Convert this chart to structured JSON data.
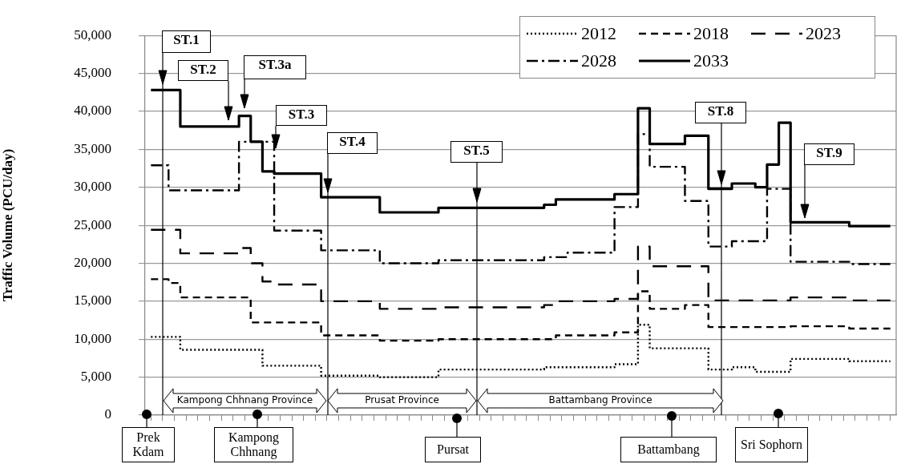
{
  "chart_data": {
    "type": "step",
    "ylabel": "Traffic Volume (PCU/day)",
    "categories": [
      null,
      null,
      null,
      null,
      null,
      null,
      null,
      null,
      null,
      null,
      null,
      null,
      null,
      null,
      null,
      null,
      null,
      null,
      null,
      null,
      null,
      null,
      null,
      null,
      null,
      null,
      null,
      null,
      null,
      null,
      null,
      null,
      null,
      null,
      null,
      null,
      null,
      null,
      null,
      null,
      null,
      null,
      null,
      null,
      null,
      null,
      null,
      null,
      null,
      null,
      null,
      null,
      null,
      null,
      null,
      null,
      null,
      null,
      null,
      null,
      null,
      null,
      null,
      null
    ],
    "series": [
      {
        "name": "2012",
        "color": "#000000",
        "line_style": "dotted",
        "values": [
          10300,
          10300,
          10300,
          8600,
          8600,
          8600,
          8600,
          8600,
          8600,
          8600,
          6500,
          6500,
          6500,
          6500,
          6500,
          5200,
          5200,
          5200,
          5200,
          5200,
          5000,
          5000,
          5000,
          5000,
          5000,
          6000,
          6000,
          6000,
          6000,
          6000,
          6000,
          6000,
          6000,
          6000,
          6300,
          6300,
          6300,
          6300,
          6300,
          6300,
          6700,
          6700,
          11900,
          8800,
          8800,
          8800,
          8800,
          8800,
          6000,
          6000,
          6300,
          6300,
          5700,
          5700,
          5700,
          7400,
          7400,
          7400,
          7400,
          7400,
          7100,
          7100,
          7100,
          7100
        ]
      },
      {
        "name": "2018",
        "color": "#000000",
        "line_style": "dashed",
        "values": [
          17900,
          17900,
          17400,
          15500,
          15500,
          15500,
          15500,
          15500,
          15500,
          12200,
          12200,
          12200,
          12200,
          12200,
          12200,
          10500,
          10500,
          10500,
          10500,
          10500,
          9800,
          9800,
          9800,
          9800,
          9800,
          10000,
          10000,
          10000,
          10000,
          10000,
          10000,
          10000,
          10000,
          10000,
          10000,
          10500,
          10500,
          10500,
          10500,
          10500,
          10900,
          10900,
          16300,
          14000,
          14000,
          14000,
          14500,
          14500,
          11600,
          11600,
          11600,
          11600,
          11600,
          11600,
          11600,
          11700,
          11700,
          11700,
          11700,
          11700,
          11400,
          11400,
          11400,
          11400
        ]
      },
      {
        "name": "2023",
        "color": "#000000",
        "line_style": "longdash",
        "values": [
          24400,
          24400,
          24400,
          21300,
          21300,
          21300,
          21300,
          21300,
          22000,
          20000,
          17600,
          17200,
          17200,
          17200,
          17200,
          15000,
          15000,
          15000,
          15000,
          15000,
          14000,
          14000,
          14000,
          14000,
          14000,
          14200,
          14200,
          14200,
          14200,
          14200,
          14200,
          14200,
          14200,
          14200,
          14500,
          15000,
          15000,
          15000,
          15000,
          15000,
          15300,
          15300,
          22200,
          19600,
          19600,
          19600,
          19600,
          19600,
          15100,
          15100,
          15100,
          15100,
          15100,
          15100,
          15100,
          15500,
          15500,
          15500,
          15500,
          15500,
          15100,
          15100,
          15100,
          15100
        ]
      },
      {
        "name": "2028",
        "color": "#000000",
        "line_style": "dashdot",
        "values": [
          32900,
          32900,
          29600,
          29600,
          29600,
          29600,
          29600,
          29600,
          36000,
          36000,
          36000,
          24300,
          24300,
          24300,
          24300,
          21700,
          21700,
          21700,
          21700,
          21700,
          20000,
          20000,
          20000,
          20000,
          20000,
          20400,
          20400,
          20400,
          20400,
          20400,
          20400,
          20400,
          20400,
          20400,
          20800,
          20800,
          21400,
          21400,
          21400,
          21400,
          27400,
          27400,
          37000,
          32700,
          32700,
          32700,
          28200,
          28200,
          22200,
          22200,
          22900,
          22900,
          22900,
          29800,
          29800,
          20200,
          20200,
          20200,
          20200,
          20200,
          19900,
          19900,
          19900,
          19900
        ]
      },
      {
        "name": "2033",
        "color": "#000000",
        "line_style": "solid",
        "values": [
          42800,
          42800,
          42800,
          38000,
          38000,
          38000,
          38000,
          38000,
          39400,
          36000,
          32100,
          31800,
          31800,
          31800,
          31800,
          28700,
          28700,
          28700,
          28700,
          28700,
          26700,
          26700,
          26700,
          26700,
          26700,
          27300,
          27300,
          27300,
          27300,
          27300,
          27300,
          27300,
          27300,
          27300,
          27700,
          28400,
          28400,
          28400,
          28400,
          28400,
          29100,
          29100,
          40400,
          35700,
          35700,
          35700,
          36800,
          36800,
          29800,
          29800,
          30500,
          30500,
          30000,
          33000,
          38500,
          25400,
          25400,
          25400,
          25400,
          25400,
          24900,
          24900,
          24900,
          24900
        ]
      }
    ],
    "ylim": [
      0,
      50000
    ],
    "yticks": [
      0,
      {
        "value": 5000,
        "label": "5,000"
      },
      {
        "value": 10000,
        "label": "10,000"
      },
      {
        "value": 15000,
        "label": "15,000"
      },
      {
        "value": 20000,
        "label": "20,000"
      },
      {
        "value": 25000,
        "label": "25,000"
      },
      {
        "value": 30000,
        "label": "30,000"
      },
      {
        "value": 35000,
        "label": "35,000"
      },
      {
        "value": 40000,
        "label": "40,000"
      },
      {
        "value": 45000,
        "label": "45,000"
      },
      {
        "value": 50000,
        "label": "50,000"
      }
    ],
    "grid": "y",
    "legend": "top right",
    "marker": "none",
    "tick_labels": "y",
    "annotations": [
      "ST.1",
      "ST.2",
      "ST.3a",
      "ST.3",
      "ST.4",
      "ST.5",
      "ST.8",
      "ST.9",
      "Kampong  Chhnang Province",
      "Prusat Province",
      "Battambang  Province",
      "Prek Kdam",
      "Kampong Chhnang",
      "Pursat",
      "Battambang",
      "Sri Sophorn"
    ]
  }
}
